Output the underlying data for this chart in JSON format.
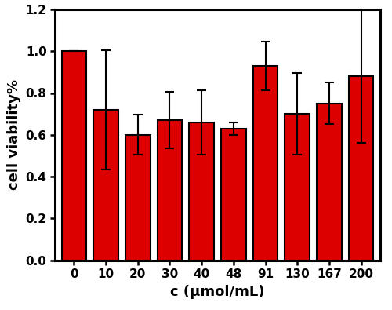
{
  "categories": [
    "0",
    "10",
    "20",
    "30",
    "40",
    "48",
    "91",
    "130",
    "167",
    "200"
  ],
  "values": [
    1.0,
    0.72,
    0.6,
    0.67,
    0.66,
    0.63,
    0.93,
    0.7,
    0.75,
    0.88
  ],
  "errors": [
    0.0,
    0.285,
    0.095,
    0.135,
    0.155,
    0.03,
    0.115,
    0.195,
    0.1,
    0.32
  ],
  "bar_color": "#DD0000",
  "bar_edgecolor": "#000000",
  "error_color": "black",
  "xlabel": "c (μmol/mL)",
  "ylabel": "cell viability%",
  "ylim": [
    0.0,
    1.2
  ],
  "yticks": [
    0.0,
    0.2,
    0.4,
    0.6,
    0.8,
    1.0,
    1.2
  ],
  "xlabel_fontsize": 13,
  "ylabel_fontsize": 13,
  "tick_fontsize": 11,
  "bar_width": 0.78,
  "linewidth": 1.5,
  "spine_linewidth": 2.2,
  "capsize": 4,
  "figsize": [
    5.0,
    3.95
  ],
  "dpi": 100
}
